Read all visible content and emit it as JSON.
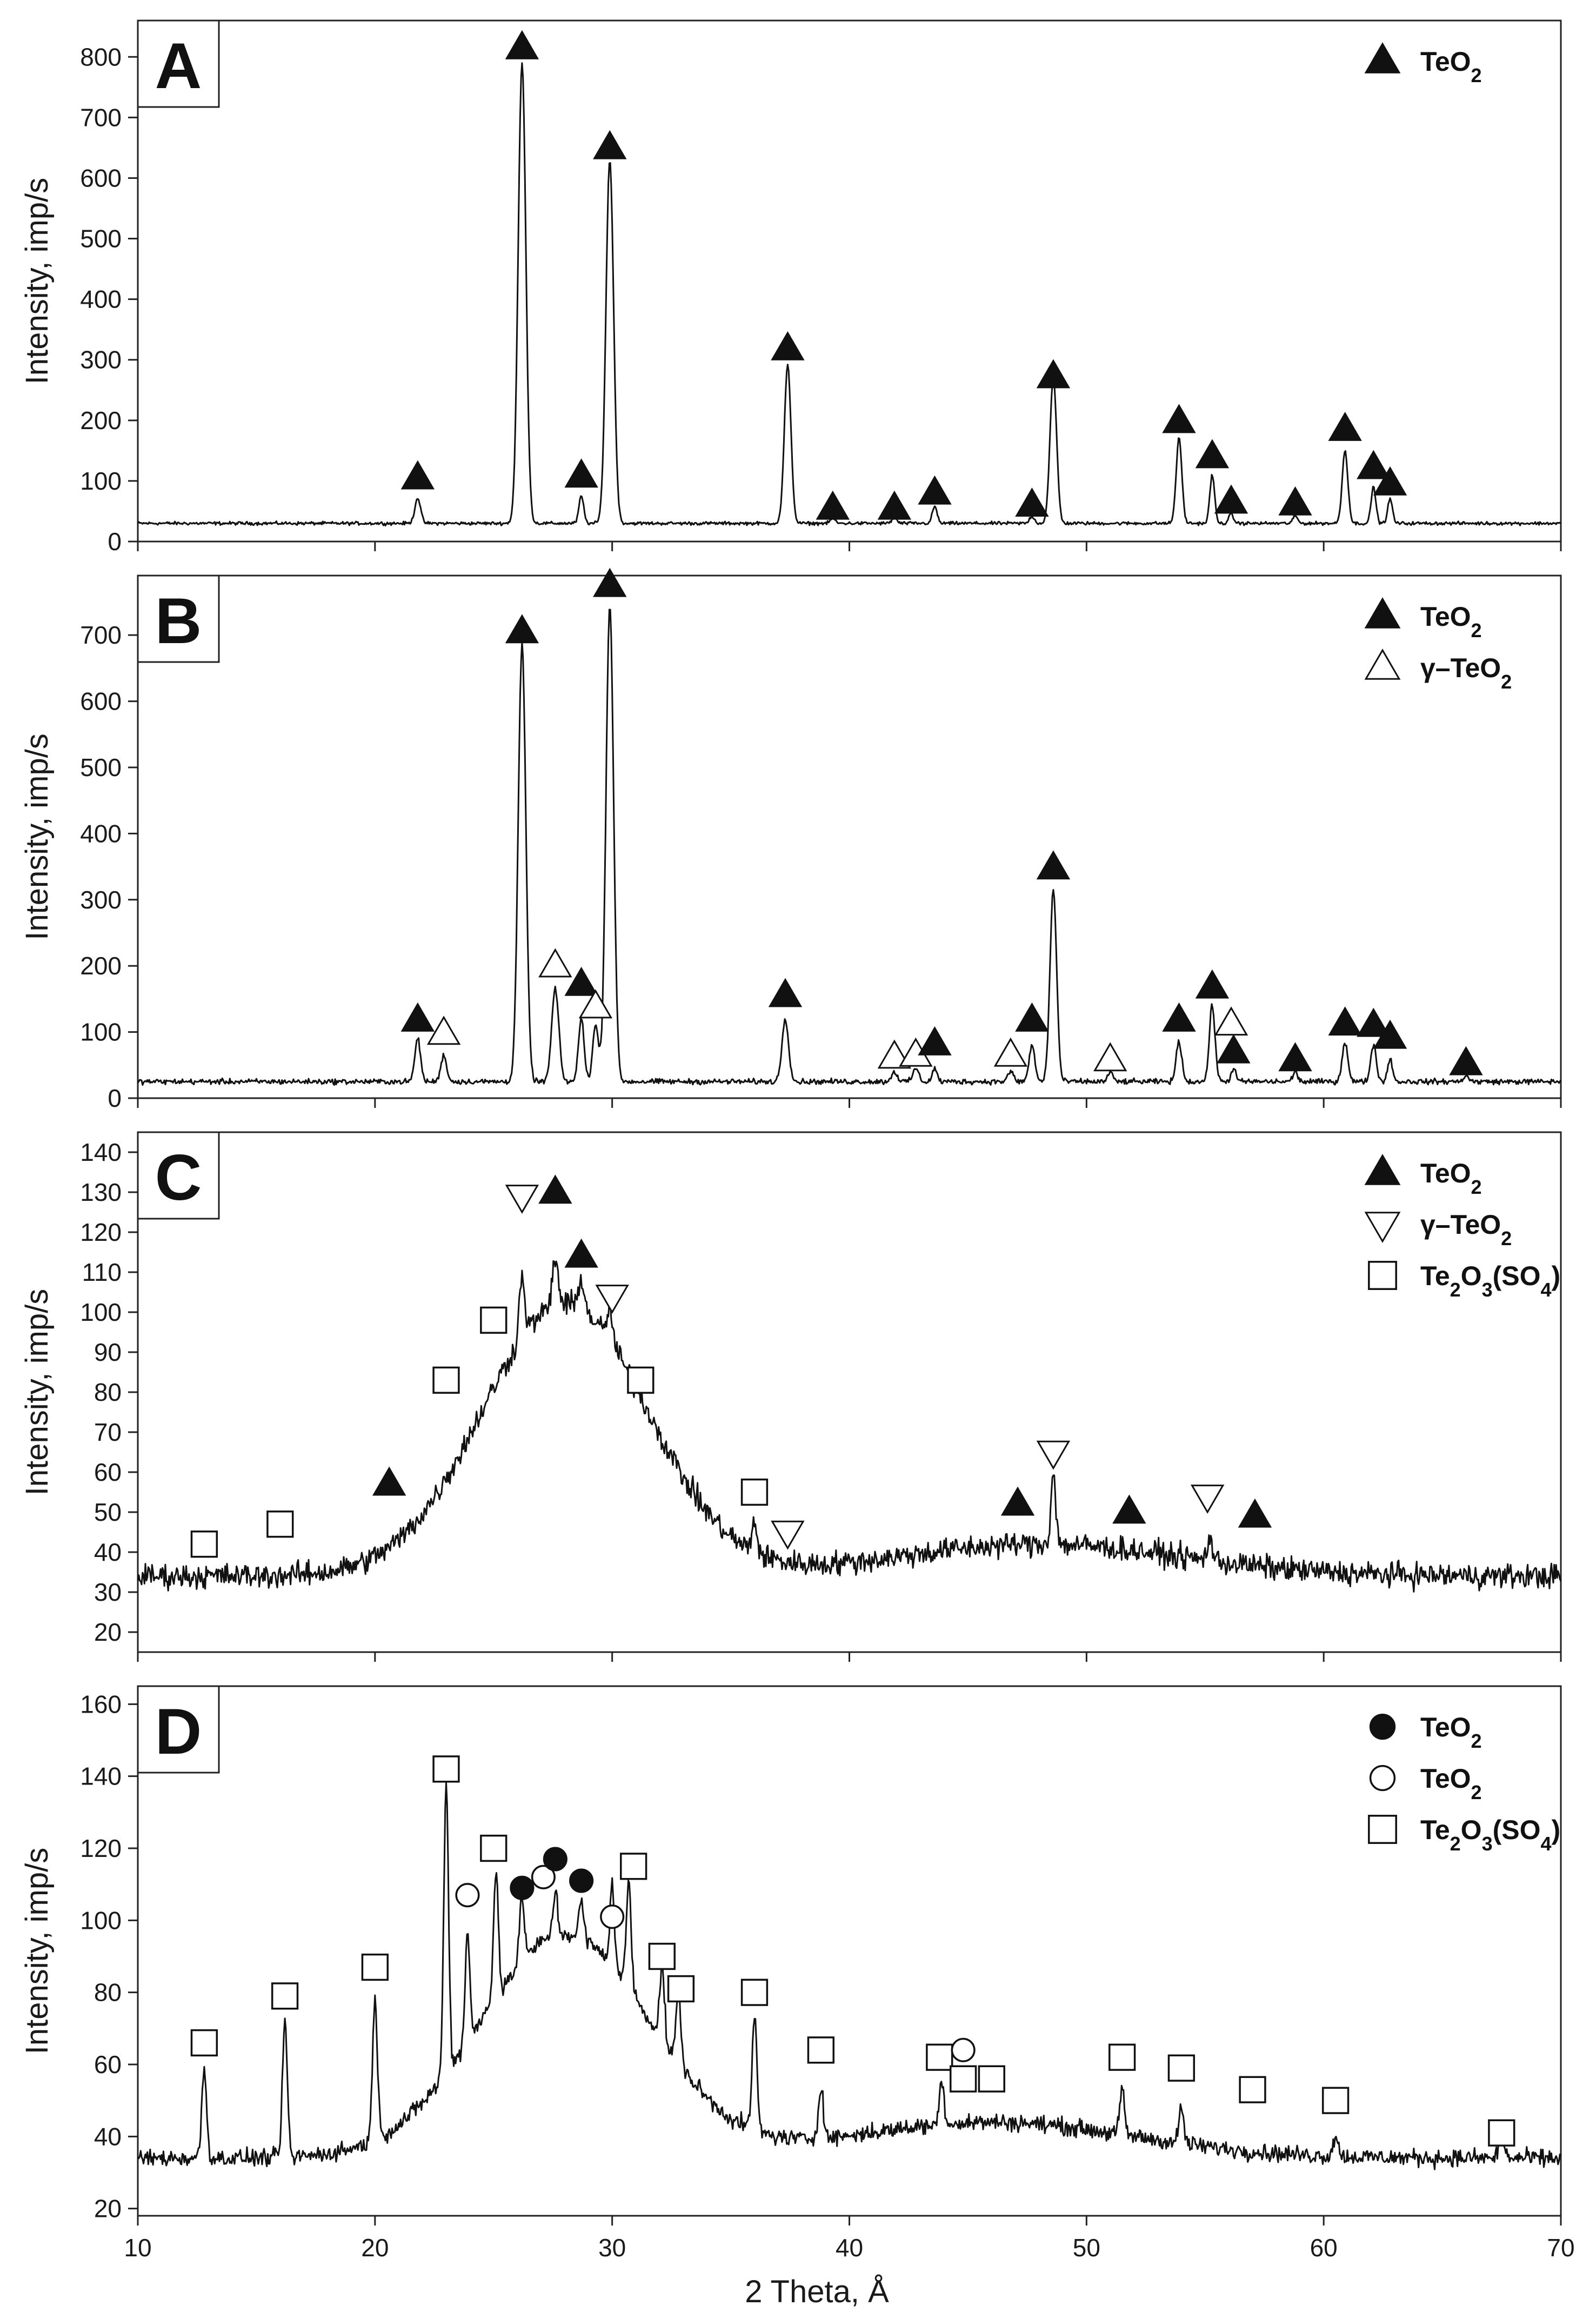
{
  "chart_data": [
    {
      "type": "line",
      "panel": "A",
      "xlabel": "2 Theta, Å",
      "ylabel": "Intensity, imp/s",
      "xlim": [
        10,
        70
      ],
      "ylim": [
        0,
        860
      ],
      "yticks": [
        0,
        100,
        200,
        300,
        400,
        500,
        600,
        700,
        800
      ],
      "baseline": 30,
      "noise": 4,
      "legend": [
        {
          "marker": "triangle-filled",
          "label": "TeO",
          "sub": "2"
        }
      ],
      "peaks": [
        [
          21.8,
          42,
          0.12
        ],
        [
          26.2,
          760,
          0.16
        ],
        [
          28.7,
          45,
          0.1
        ],
        [
          29.9,
          600,
          0.16
        ],
        [
          37.4,
          260,
          0.14
        ],
        [
          39.3,
          8,
          0.1
        ],
        [
          41.9,
          10,
          0.1
        ],
        [
          43.6,
          28,
          0.1
        ],
        [
          47.7,
          12,
          0.1
        ],
        [
          48.6,
          240,
          0.14
        ],
        [
          53.9,
          140,
          0.12
        ],
        [
          55.3,
          80,
          0.1
        ],
        [
          56.1,
          15,
          0.1
        ],
        [
          58.8,
          12,
          0.1
        ],
        [
          60.9,
          120,
          0.12
        ],
        [
          62.1,
          60,
          0.1
        ],
        [
          62.8,
          40,
          0.1
        ]
      ],
      "markers": [
        {
          "type": "triangle-filled",
          "x": 21.8,
          "y": 105
        },
        {
          "type": "triangle-filled",
          "x": 26.2,
          "y": 815
        },
        {
          "type": "triangle-filled",
          "x": 28.7,
          "y": 108
        },
        {
          "type": "triangle-filled",
          "x": 29.9,
          "y": 650
        },
        {
          "type": "triangle-filled",
          "x": 37.4,
          "y": 318
        },
        {
          "type": "triangle-filled",
          "x": 39.3,
          "y": 55
        },
        {
          "type": "triangle-filled",
          "x": 41.9,
          "y": 55
        },
        {
          "type": "triangle-filled",
          "x": 43.6,
          "y": 80
        },
        {
          "type": "triangle-filled",
          "x": 47.7,
          "y": 60
        },
        {
          "type": "triangle-filled",
          "x": 48.6,
          "y": 272
        },
        {
          "type": "triangle-filled",
          "x": 53.9,
          "y": 198
        },
        {
          "type": "triangle-filled",
          "x": 55.3,
          "y": 140
        },
        {
          "type": "triangle-filled",
          "x": 56.1,
          "y": 65
        },
        {
          "type": "triangle-filled",
          "x": 58.8,
          "y": 62
        },
        {
          "type": "triangle-filled",
          "x": 60.9,
          "y": 185
        },
        {
          "type": "triangle-filled",
          "x": 62.1,
          "y": 122
        },
        {
          "type": "triangle-filled",
          "x": 62.8,
          "y": 95
        }
      ]
    },
    {
      "type": "line",
      "panel": "B",
      "xlabel": "2 Theta, Å",
      "ylabel": "Intensity, imp/s",
      "xlim": [
        10,
        70
      ],
      "ylim": [
        0,
        790
      ],
      "yticks": [
        0,
        100,
        200,
        300,
        400,
        500,
        600,
        700
      ],
      "baseline": 25,
      "noise": 6,
      "legend": [
        {
          "marker": "triangle-filled",
          "label": "TeO",
          "sub": "2"
        },
        {
          "marker": "triangle-open",
          "label": "γ–TeO",
          "sub": "2"
        }
      ],
      "peaks": [
        [
          21.8,
          65,
          0.12
        ],
        [
          22.9,
          40,
          0.12
        ],
        [
          26.2,
          660,
          0.16
        ],
        [
          27.6,
          140,
          0.15
        ],
        [
          28.7,
          95,
          0.12
        ],
        [
          29.3,
          85,
          0.12
        ],
        [
          29.9,
          720,
          0.16
        ],
        [
          37.3,
          95,
          0.14
        ],
        [
          41.9,
          15,
          0.12
        ],
        [
          42.8,
          20,
          0.12
        ],
        [
          43.6,
          20,
          0.1
        ],
        [
          46.8,
          15,
          0.12
        ],
        [
          47.7,
          55,
          0.12
        ],
        [
          48.6,
          290,
          0.14
        ],
        [
          51.0,
          15,
          0.1
        ],
        [
          53.9,
          60,
          0.12
        ],
        [
          55.3,
          115,
          0.12
        ],
        [
          56.2,
          20,
          0.1
        ],
        [
          58.8,
          15,
          0.1
        ],
        [
          60.9,
          60,
          0.12
        ],
        [
          62.1,
          55,
          0.12
        ],
        [
          62.8,
          35,
          0.1
        ],
        [
          66.0,
          10,
          0.1
        ]
      ],
      "markers": [
        {
          "type": "triangle-filled",
          "x": 21.8,
          "y": 118
        },
        {
          "type": "triangle-open",
          "x": 22.9,
          "y": 98
        },
        {
          "type": "triangle-filled",
          "x": 26.2,
          "y": 705
        },
        {
          "type": "triangle-open",
          "x": 27.6,
          "y": 200
        },
        {
          "type": "triangle-filled",
          "x": 28.7,
          "y": 172
        },
        {
          "type": "triangle-open",
          "x": 29.3,
          "y": 138
        },
        {
          "type": "triangle-filled",
          "x": 29.9,
          "y": 775
        },
        {
          "type": "triangle-filled",
          "x": 37.3,
          "y": 155
        },
        {
          "type": "triangle-open",
          "x": 41.9,
          "y": 62
        },
        {
          "type": "triangle-open",
          "x": 42.8,
          "y": 65
        },
        {
          "type": "triangle-filled",
          "x": 43.6,
          "y": 82
        },
        {
          "type": "triangle-open",
          "x": 46.8,
          "y": 65
        },
        {
          "type": "triangle-filled",
          "x": 47.7,
          "y": 118
        },
        {
          "type": "triangle-filled",
          "x": 48.6,
          "y": 348
        },
        {
          "type": "triangle-open",
          "x": 51.0,
          "y": 58
        },
        {
          "type": "triangle-filled",
          "x": 53.9,
          "y": 118
        },
        {
          "type": "triangle-filled",
          "x": 55.3,
          "y": 168
        },
        {
          "type": "triangle-open",
          "x": 56.1,
          "y": 112
        },
        {
          "type": "triangle-filled",
          "x": 56.2,
          "y": 70
        },
        {
          "type": "triangle-filled",
          "x": 58.8,
          "y": 58
        },
        {
          "type": "triangle-filled",
          "x": 60.9,
          "y": 112
        },
        {
          "type": "triangle-filled",
          "x": 62.1,
          "y": 110
        },
        {
          "type": "triangle-filled",
          "x": 62.8,
          "y": 92
        },
        {
          "type": "triangle-filled",
          "x": 66.0,
          "y": 52
        }
      ]
    },
    {
      "type": "line",
      "panel": "C",
      "xlabel": "2 Theta, Å",
      "ylabel": "Intensity, imp/s",
      "xlim": [
        10,
        70
      ],
      "ylim": [
        15,
        145
      ],
      "yticks": [
        20,
        30,
        40,
        50,
        60,
        70,
        80,
        90,
        100,
        110,
        120,
        130,
        140
      ],
      "baseline": 34,
      "noise": 4.5,
      "humps": [
        [
          28,
          68,
          3.5
        ],
        [
          48,
          8,
          6
        ]
      ],
      "legend": [
        {
          "marker": "triangle-filled",
          "label": "TeO",
          "sub": "2"
        },
        {
          "marker": "triangle-down-open",
          "label": "γ–TeO",
          "sub": "2"
        },
        {
          "marker": "square-open",
          "label": "Te",
          "sub": "2",
          "label2": "O",
          "sub2": "3",
          "label3": "(SO",
          "sub3": "4",
          "label4": ")"
        }
      ],
      "peaks": [
        [
          26.2,
          15,
          0.12
        ],
        [
          27.6,
          12,
          0.12
        ],
        [
          28.7,
          8,
          0.12
        ],
        [
          29.9,
          8,
          0.12
        ],
        [
          48.6,
          18,
          0.1
        ],
        [
          55.2,
          6,
          0.1
        ],
        [
          36.0,
          8,
          0.1
        ]
      ],
      "markers": [
        {
          "type": "square-open",
          "x": 12.8,
          "y": 42
        },
        {
          "type": "square-open",
          "x": 16.0,
          "y": 47
        },
        {
          "type": "triangle-filled",
          "x": 20.6,
          "y": 57
        },
        {
          "type": "square-open",
          "x": 23.0,
          "y": 83
        },
        {
          "type": "square-open",
          "x": 25.0,
          "y": 98
        },
        {
          "type": "triangle-down-open",
          "x": 26.2,
          "y": 129
        },
        {
          "type": "triangle-filled",
          "x": 27.6,
          "y": 130
        },
        {
          "type": "triangle-filled",
          "x": 28.7,
          "y": 114
        },
        {
          "type": "triangle-down-open",
          "x": 30.0,
          "y": 104
        },
        {
          "type": "square-open",
          "x": 31.2,
          "y": 83
        },
        {
          "type": "square-open",
          "x": 36.0,
          "y": 55
        },
        {
          "type": "triangle-down-open",
          "x": 37.4,
          "y": 45
        },
        {
          "type": "triangle-filled",
          "x": 47.1,
          "y": 52
        },
        {
          "type": "triangle-down-open",
          "x": 48.6,
          "y": 65
        },
        {
          "type": "triangle-filled",
          "x": 51.8,
          "y": 50
        },
        {
          "type": "triangle-down-open",
          "x": 55.1,
          "y": 54
        },
        {
          "type": "triangle-filled",
          "x": 57.1,
          "y": 49
        }
      ]
    },
    {
      "type": "line",
      "panel": "D",
      "xlabel": "2 Theta, Å",
      "ylabel": "Intensity, imp/s",
      "xlim": [
        10,
        70
      ],
      "ylim": [
        18,
        165
      ],
      "yticks": [
        20,
        40,
        60,
        80,
        100,
        120,
        140,
        160
      ],
      "xticks": [
        10,
        20,
        30,
        40,
        50,
        60,
        70
      ],
      "baseline": 34,
      "noise": 3.5,
      "humps": [
        [
          28,
          62,
          3.6
        ],
        [
          46,
          10,
          6
        ]
      ],
      "legend": [
        {
          "marker": "circle-filled",
          "label": "TeO",
          "sub": "2"
        },
        {
          "marker": "circle-open",
          "label": "TeO",
          "sub": "2"
        },
        {
          "marker": "square-open",
          "label": "Te",
          "sub": "2",
          "label2": "O",
          "sub2": "3",
          "label3": "(SO",
          "sub3": "4",
          "label4": ")"
        }
      ],
      "peaks": [
        [
          12.8,
          25,
          0.1
        ],
        [
          16.2,
          38,
          0.1
        ],
        [
          20.0,
          40,
          0.1
        ],
        [
          23.0,
          80,
          0.1
        ],
        [
          23.9,
          30,
          0.1
        ],
        [
          25.1,
          35,
          0.1
        ],
        [
          26.2,
          18,
          0.1
        ],
        [
          27.6,
          12,
          0.1
        ],
        [
          28.7,
          10,
          0.1
        ],
        [
          30.0,
          22,
          0.1
        ],
        [
          30.7,
          30,
          0.1
        ],
        [
          32.1,
          20,
          0.1
        ],
        [
          32.8,
          20,
          0.1
        ],
        [
          36.0,
          32,
          0.1
        ],
        [
          38.8,
          15,
          0.1
        ],
        [
          43.9,
          12,
          0.1
        ],
        [
          51.5,
          12,
          0.1
        ],
        [
          54.0,
          10,
          0.1
        ],
        [
          60.5,
          6,
          0.1
        ],
        [
          67.5,
          8,
          0.1
        ]
      ],
      "markers": [
        {
          "type": "square-open",
          "x": 12.8,
          "y": 66
        },
        {
          "type": "square-open",
          "x": 16.2,
          "y": 79
        },
        {
          "type": "square-open",
          "x": 20.0,
          "y": 87
        },
        {
          "type": "square-open",
          "x": 23.0,
          "y": 142
        },
        {
          "type": "circle-open",
          "x": 23.9,
          "y": 107
        },
        {
          "type": "square-open",
          "x": 25.0,
          "y": 120
        },
        {
          "type": "circle-filled",
          "x": 26.2,
          "y": 109
        },
        {
          "type": "circle-open",
          "x": 27.1,
          "y": 112
        },
        {
          "type": "circle-filled",
          "x": 27.6,
          "y": 117
        },
        {
          "type": "circle-filled",
          "x": 28.7,
          "y": 111
        },
        {
          "type": "circle-open",
          "x": 30.0,
          "y": 101
        },
        {
          "type": "square-open",
          "x": 30.9,
          "y": 115
        },
        {
          "type": "square-open",
          "x": 32.1,
          "y": 90
        },
        {
          "type": "square-open",
          "x": 32.9,
          "y": 81
        },
        {
          "type": "square-open",
          "x": 36.0,
          "y": 80
        },
        {
          "type": "square-open",
          "x": 38.8,
          "y": 64
        },
        {
          "type": "square-open",
          "x": 43.8,
          "y": 62
        },
        {
          "type": "circle-open",
          "x": 44.8,
          "y": 64
        },
        {
          "type": "square-open",
          "x": 44.8,
          "y": 56
        },
        {
          "type": "square-open",
          "x": 46.0,
          "y": 56
        },
        {
          "type": "square-open",
          "x": 51.5,
          "y": 62
        },
        {
          "type": "square-open",
          "x": 54.0,
          "y": 59
        },
        {
          "type": "square-open",
          "x": 57.0,
          "y": 53
        },
        {
          "type": "square-open",
          "x": 60.5,
          "y": 50
        },
        {
          "type": "square-open",
          "x": 67.5,
          "y": 41
        }
      ]
    }
  ]
}
